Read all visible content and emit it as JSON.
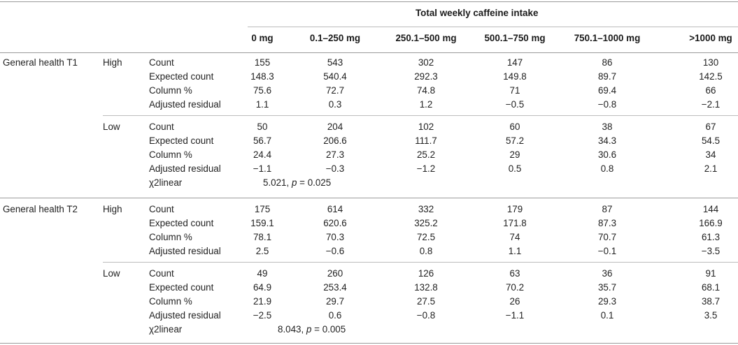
{
  "header": {
    "super_title": "Total weekly caffeine intake",
    "columns": [
      "0 mg",
      "0.1–250 mg",
      "250.1–500 mg",
      "500.1–750 mg",
      "750.1–1000 mg",
      ">1000 mg"
    ]
  },
  "groups": [
    {
      "label": "General health T1",
      "levels": [
        {
          "label": "High",
          "rows": [
            {
              "stat": "Count",
              "values": [
                "155",
                "543",
                "302",
                "147",
                "86",
                "130"
              ]
            },
            {
              "stat": "Expected count",
              "values": [
                "148.3",
                "540.4",
                "292.3",
                "149.8",
                "89.7",
                "142.5"
              ]
            },
            {
              "stat": "Column %",
              "values": [
                "75.6",
                "72.7",
                "74.8",
                "71",
                "69.4",
                "66"
              ]
            },
            {
              "stat": "Adjusted residual",
              "values": [
                "1.1",
                "0.3",
                "1.2",
                "−0.5",
                "−0.8",
                "−2.1"
              ]
            }
          ]
        },
        {
          "label": "Low",
          "rows": [
            {
              "stat": "Count",
              "values": [
                "50",
                "204",
                "102",
                "60",
                "38",
                "67"
              ]
            },
            {
              "stat": "Expected count",
              "values": [
                "56.7",
                "206.6",
                "111.7",
                "57.2",
                "34.3",
                "54.5"
              ]
            },
            {
              "stat": "Column %",
              "values": [
                "24.4",
                "27.3",
                "25.2",
                "29",
                "30.6",
                "34"
              ]
            },
            {
              "stat": "Adjusted residual",
              "values": [
                "−1.1",
                "−0.3",
                "−1.2",
                "0.5",
                "0.8",
                "2.1"
              ]
            }
          ]
        }
      ],
      "chi": {
        "label": "χ2linear",
        "stat_value": "5.021,",
        "p_label": "p",
        "p_value": "= 0.025"
      }
    },
    {
      "label": "General health T2",
      "levels": [
        {
          "label": "High",
          "rows": [
            {
              "stat": "Count",
              "values": [
                "175",
                "614",
                "332",
                "179",
                "87",
                "144"
              ]
            },
            {
              "stat": "Expected count",
              "values": [
                "159.1",
                "620.6",
                "325.2",
                "171.8",
                "87.3",
                "166.9"
              ]
            },
            {
              "stat": "Column %",
              "values": [
                "78.1",
                "70.3",
                "72.5",
                "74",
                "70.7",
                "61.3"
              ]
            },
            {
              "stat": "Adjusted residual",
              "values": [
                "2.5",
                "−0.6",
                "0.8",
                "1.1",
                "−0.1",
                "−3.5"
              ]
            }
          ]
        },
        {
          "label": "Low",
          "rows": [
            {
              "stat": "Count",
              "values": [
                "49",
                "260",
                "126",
                "63",
                "36",
                "91"
              ]
            },
            {
              "stat": "Expected count",
              "values": [
                "64.9",
                "253.4",
                "132.8",
                "70.2",
                "35.7",
                "68.1"
              ]
            },
            {
              "stat": "Column %",
              "values": [
                "21.9",
                "29.7",
                "27.5",
                "26",
                "29.3",
                "38.7"
              ]
            },
            {
              "stat": "Adjusted residual",
              "values": [
                "−2.5",
                "0.6",
                "−0.8",
                "−1.1",
                "0.1",
                "3.5"
              ]
            }
          ]
        }
      ],
      "chi": {
        "label": "χ2linear",
        "stat_value": "8.043,",
        "p_label": "p",
        "p_value": "= 0.005"
      }
    }
  ]
}
